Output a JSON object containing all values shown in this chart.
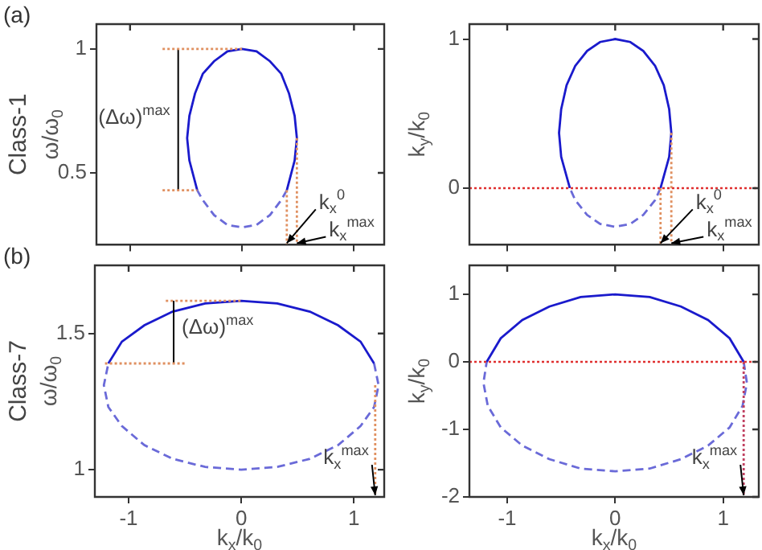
{
  "chart_data": [
    {
      "type": "line",
      "title": "(a)",
      "ylabel": "ω/ω$_{0}$",
      "xlim": [
        -1.3,
        1.27
      ],
      "xticks": [
        -1,
        0,
        1
      ],
      "ylim": [
        0.21,
        1.1
      ],
      "yticks": [
        0.5,
        1
      ],
      "tick_labels": "y",
      "series": [
        {
          "color": "#1a1acc",
          "line_style": "solid",
          "x": [
            0.4,
            0.47,
            0.49,
            0.47,
            0.42,
            0.35,
            0.25,
            0.13,
            0,
            -0.13,
            -0.25,
            -0.35,
            -0.42,
            -0.47,
            -0.49,
            -0.47,
            -0.4
          ],
          "values": [
            0.43,
            0.55,
            0.64,
            0.73,
            0.82,
            0.9,
            0.95,
            0.99,
            1,
            0.99,
            0.95,
            0.9,
            0.82,
            0.73,
            0.64,
            0.55,
            0.43
          ]
        },
        {
          "color": "#6a6ad8",
          "line_style": "dashed",
          "x": [
            0.4,
            0.35,
            0.25,
            0.13,
            0,
            -0.13,
            -0.25,
            -0.35,
            -0.4
          ],
          "values": [
            0.43,
            0.39,
            0.33,
            0.29,
            0.28,
            0.29,
            0.33,
            0.39,
            0.43
          ]
        },
        {
          "color": "#e09060",
          "line_style": "dotted",
          "x": [
            -0.71,
            0
          ],
          "values": [
            1,
            1
          ]
        },
        {
          "color": "#e09060",
          "line_style": "dotted",
          "x": [
            -0.71,
            -0.4
          ],
          "values": [
            0.43,
            0.43
          ]
        },
        {
          "color": "#e09060",
          "line_style": "dotted",
          "x": [
            0.4,
            0.4
          ],
          "values": [
            0.43,
            0.21
          ]
        },
        {
          "color": "#e09060",
          "line_style": "dotted",
          "x": [
            0.49,
            0.49
          ],
          "values": [
            0.64,
            0.21
          ]
        },
        {
          "color": "#000000",
          "line_style": "solid",
          "x": [
            -0.57,
            -0.57
          ],
          "values": [
            1,
            0.43
          ]
        }
      ],
      "annotations": [
        "Class-1",
        {
          "text": "(Δω)$^{max}$",
          "x": -0.57,
          "y": 0.72
        },
        {
          "text": "k$_{x}$$^{0}$",
          "x": 0.4,
          "y": 0.21
        },
        {
          "text": "k$_{x}$$^{max}$",
          "x": 0.49,
          "y": 0.21
        }
      ]
    },
    {
      "type": "line",
      "ylabel": "k$_{y}$/k$_{0}$",
      "xlim": [
        -1.35,
        1.33
      ],
      "xticks": [
        -1,
        0,
        1
      ],
      "ylim": [
        -0.38,
        1.1
      ],
      "yticks": [
        0,
        1
      ],
      "tick_labels": "y",
      "series": [
        {
          "color": "#1a1acc",
          "line_style": "solid",
          "x": [
            0.42,
            0.5,
            0.52,
            0.5,
            0.45,
            0.37,
            0.26,
            0.14,
            0,
            -0.14,
            -0.26,
            -0.37,
            -0.45,
            -0.5,
            -0.52,
            -0.5,
            -0.42
          ],
          "values": [
            0,
            0.21,
            0.37,
            0.53,
            0.69,
            0.82,
            0.92,
            0.98,
            1,
            0.98,
            0.92,
            0.82,
            0.69,
            0.53,
            0.37,
            0.21,
            0
          ]
        },
        {
          "color": "#6a6ad8",
          "line_style": "dashed",
          "x": [
            0.42,
            0.37,
            0.26,
            0.14,
            0,
            -0.14,
            -0.26,
            -0.37,
            -0.42
          ],
          "values": [
            0,
            -0.08,
            -0.18,
            -0.24,
            -0.26,
            -0.24,
            -0.18,
            -0.08,
            0
          ]
        },
        {
          "color": "#e09060",
          "line_style": "dotted",
          "x": [
            0.42,
            0.42
          ],
          "values": [
            0,
            -0.38
          ]
        },
        {
          "color": "#e09060",
          "line_style": "dotted",
          "x": [
            0.52,
            0.52
          ],
          "values": [
            0.37,
            -0.38
          ]
        }
      ],
      "ref_lines": [
        {
          "axis": "y",
          "value": 0,
          "color": "#e03030",
          "line_style": "dotted"
        }
      ],
      "annotations": [
        {
          "text": "k$_{x}$$^{0}$",
          "x": 0.42,
          "y": -0.38
        },
        {
          "text": "k$_{x}$$^{max}$",
          "x": 0.52,
          "y": -0.38
        }
      ]
    },
    {
      "type": "line",
      "title": "(b)",
      "ylabel": "ω/ω$_{0}$",
      "xlabel": "k$_{x}$/k$_{0}$",
      "xlim": [
        -1.3,
        1.27
      ],
      "xticks": [
        -1,
        0,
        1
      ],
      "ylim": [
        0.9,
        1.75
      ],
      "yticks": [
        1,
        1.5
      ],
      "series": [
        {
          "color": "#1a1acc",
          "line_style": "solid",
          "x": [
            1.18,
            1.06,
            0.86,
            0.61,
            0.32,
            0,
            -0.32,
            -0.61,
            -0.86,
            -1.06,
            -1.18
          ],
          "values": [
            1.39,
            1.47,
            1.53,
            1.58,
            1.61,
            1.62,
            1.61,
            1.58,
            1.53,
            1.47,
            1.39
          ]
        },
        {
          "color": "#6a6ad8",
          "line_style": "dashed",
          "x": [
            1.18,
            1.22,
            1.18,
            1.06,
            0.86,
            0.61,
            0.32,
            0,
            -0.32,
            -0.61,
            -0.86,
            -1.06,
            -1.18,
            -1.22,
            -1.18
          ],
          "values": [
            1.39,
            1.31,
            1.23,
            1.16,
            1.09,
            1.04,
            1.01,
            1,
            1.01,
            1.04,
            1.09,
            1.16,
            1.23,
            1.31,
            1.39
          ]
        },
        {
          "color": "#e09060",
          "line_style": "dotted",
          "x": [
            -0.67,
            0
          ],
          "values": [
            1.62,
            1.62
          ]
        },
        {
          "color": "#e09060",
          "line_style": "dotted",
          "x": [
            -1.21,
            -0.5
          ],
          "values": [
            1.39,
            1.39
          ]
        },
        {
          "color": "#e09060",
          "line_style": "dotted",
          "x": [
            1.19,
            1.19
          ],
          "values": [
            1.31,
            0.9
          ]
        },
        {
          "color": "#000000",
          "line_style": "solid",
          "x": [
            -0.6,
            -0.6
          ],
          "values": [
            1.62,
            1.39
          ]
        }
      ],
      "annotations": [
        "Class-7",
        {
          "text": "(Δω)$^{max}$",
          "x": -0.6,
          "y": 1.52
        },
        {
          "text": "k$_{x}$$^{max}$",
          "x": 1.19,
          "y": 0.9
        }
      ]
    },
    {
      "type": "line",
      "ylabel": "k$_{y}$/k$_{0}$",
      "xlabel": "k$_{x}$/k$_{0}$",
      "xlim": [
        -1.35,
        1.33
      ],
      "xticks": [
        -1,
        0,
        1
      ],
      "ylim": [
        -2,
        1.43
      ],
      "yticks": [
        -2,
        -1,
        0,
        1
      ],
      "series": [
        {
          "color": "#1a1acc",
          "line_style": "solid",
          "x": [
            1.19,
            1.06,
            0.86,
            0.61,
            0.32,
            0,
            -0.32,
            -0.61,
            -0.86,
            -1.06,
            -1.19
          ],
          "values": [
            0,
            0.35,
            0.62,
            0.82,
            0.96,
            1,
            0.96,
            0.82,
            0.62,
            0.35,
            0
          ]
        },
        {
          "color": "#6a6ad8",
          "line_style": "dashed",
          "x": [
            1.19,
            1.22,
            1.18,
            1.06,
            0.86,
            0.61,
            0.32,
            0,
            -0.32,
            -0.61,
            -0.86,
            -1.06,
            -1.18,
            -1.22,
            -1.19
          ],
          "values": [
            0,
            -0.31,
            -0.65,
            -0.97,
            -1.24,
            -1.44,
            -1.58,
            -1.62,
            -1.58,
            -1.44,
            -1.24,
            -0.97,
            -0.65,
            -0.31,
            0
          ]
        },
        {
          "color": "#c04060",
          "line_style": "dotted",
          "x": [
            1.19,
            1.19
          ],
          "values": [
            0,
            -2
          ]
        }
      ],
      "ref_lines": [
        {
          "axis": "y",
          "value": 0,
          "color": "#e03030",
          "line_style": "dotted"
        }
      ],
      "annotations": [
        {
          "text": "k$_{x}$$^{max}$",
          "x": 1.19,
          "y": -2
        }
      ]
    }
  ]
}
